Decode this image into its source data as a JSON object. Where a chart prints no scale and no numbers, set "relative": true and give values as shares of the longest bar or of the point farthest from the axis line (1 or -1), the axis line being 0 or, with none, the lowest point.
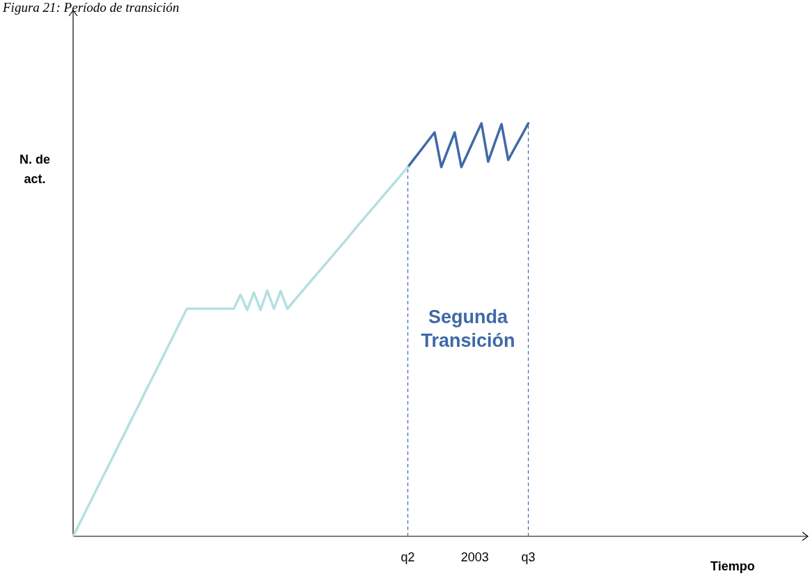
{
  "chart_data": {
    "type": "line",
    "title": "Figura 21: Período de transición",
    "ylabel": "N. de act.",
    "xlabel": "Tiempo",
    "relative": true,
    "grid": false,
    "legend": false,
    "marker": "none",
    "annotations": [
      "Segunda Transición"
    ],
    "categories": [
      null,
      null,
      null,
      null,
      null,
      null,
      null,
      null,
      null,
      null,
      null,
      null,
      null,
      null,
      null,
      null,
      null,
      null,
      null,
      null,
      null,
      null,
      null,
      null,
      null,
      null,
      null,
      null,
      null,
      null,
      null,
      null,
      null,
      null,
      null,
      null,
      null,
      null,
      null,
      null,
      null,
      null,
      null,
      null,
      null,
      null,
      null,
      null,
      null,
      null,
      "q2",
      null,
      null,
      null,
      null,
      null,
      null,
      null,
      null,
      null,
      "2003",
      null,
      null,
      null,
      null,
      null,
      null,
      null,
      "q3",
      null,
      null,
      null,
      null,
      null,
      null,
      null,
      null,
      null,
      null,
      null,
      null,
      null,
      null,
      null,
      null,
      null,
      null,
      null,
      null,
      null,
      null,
      null,
      null,
      null,
      null,
      null,
      null,
      null,
      null,
      null,
      null,
      null,
      null,
      null,
      null,
      null,
      null,
      null,
      null
    ],
    "ref_lines": [
      {
        "axis": "x",
        "value": "q2",
        "color": "#3f69a8",
        "line_style": "dashed"
      },
      {
        "axis": "x",
        "value": "q3",
        "color": "#3f69a8",
        "line_style": "dashed"
      }
    ],
    "series": [
      {
        "color": "#b5dfe2",
        "values": [
          0,
          0.032,
          0.065,
          0.097,
          0.13,
          0.162,
          0.194,
          0.227,
          0.259,
          0.292,
          0.324,
          0.357,
          0.389,
          0.421,
          0.454,
          0.486,
          0.519,
          0.551,
          0.551,
          0.551,
          0.551,
          0.551,
          0.551,
          0.551,
          0.551,
          0.585,
          0.548,
          0.59,
          0.548,
          0.595,
          0.551,
          0.594,
          0.551,
          0.57,
          0.589,
          0.608,
          0.627,
          0.646,
          0.665,
          0.684,
          0.703,
          0.722,
          0.742,
          0.761,
          0.78,
          0.799,
          0.818,
          0.837,
          0.856,
          0.875,
          0.894,
          null,
          null,
          null,
          null,
          null,
          null,
          null,
          null,
          null,
          null,
          null,
          null,
          null,
          null,
          null,
          null,
          null,
          null,
          null,
          null,
          null,
          null,
          null,
          null,
          null,
          null,
          null,
          null,
          null,
          null,
          null,
          null,
          null,
          null,
          null,
          null,
          null,
          null,
          null,
          null,
          null,
          null,
          null,
          null,
          null,
          null,
          null,
          null,
          null,
          null,
          null,
          null,
          null,
          null,
          null,
          null,
          null,
          null
        ]
      },
      {
        "color": "#3f69a8",
        "values": [
          null,
          null,
          null,
          null,
          null,
          null,
          null,
          null,
          null,
          null,
          null,
          null,
          null,
          null,
          null,
          null,
          null,
          null,
          null,
          null,
          null,
          null,
          null,
          null,
          null,
          null,
          null,
          null,
          null,
          null,
          null,
          null,
          null,
          null,
          null,
          null,
          null,
          null,
          null,
          null,
          null,
          null,
          null,
          null,
          null,
          null,
          null,
          null,
          null,
          null,
          0.894,
          0.915,
          0.936,
          0.957,
          0.978,
          0.894,
          0.936,
          0.978,
          0.894,
          0.929,
          0.965,
          1.0,
          0.907,
          0.953,
          0.998,
          0.911,
          0.941,
          0.97,
          1.0,
          null,
          null,
          null,
          null,
          null,
          null,
          null,
          null,
          null,
          null,
          null,
          null,
          null,
          null,
          null,
          null,
          null,
          null,
          null,
          null,
          null,
          null,
          null,
          null,
          null,
          null,
          null,
          null,
          null,
          null,
          null,
          null,
          null,
          null,
          null,
          null,
          null,
          null,
          null,
          null
        ]
      }
    ]
  }
}
